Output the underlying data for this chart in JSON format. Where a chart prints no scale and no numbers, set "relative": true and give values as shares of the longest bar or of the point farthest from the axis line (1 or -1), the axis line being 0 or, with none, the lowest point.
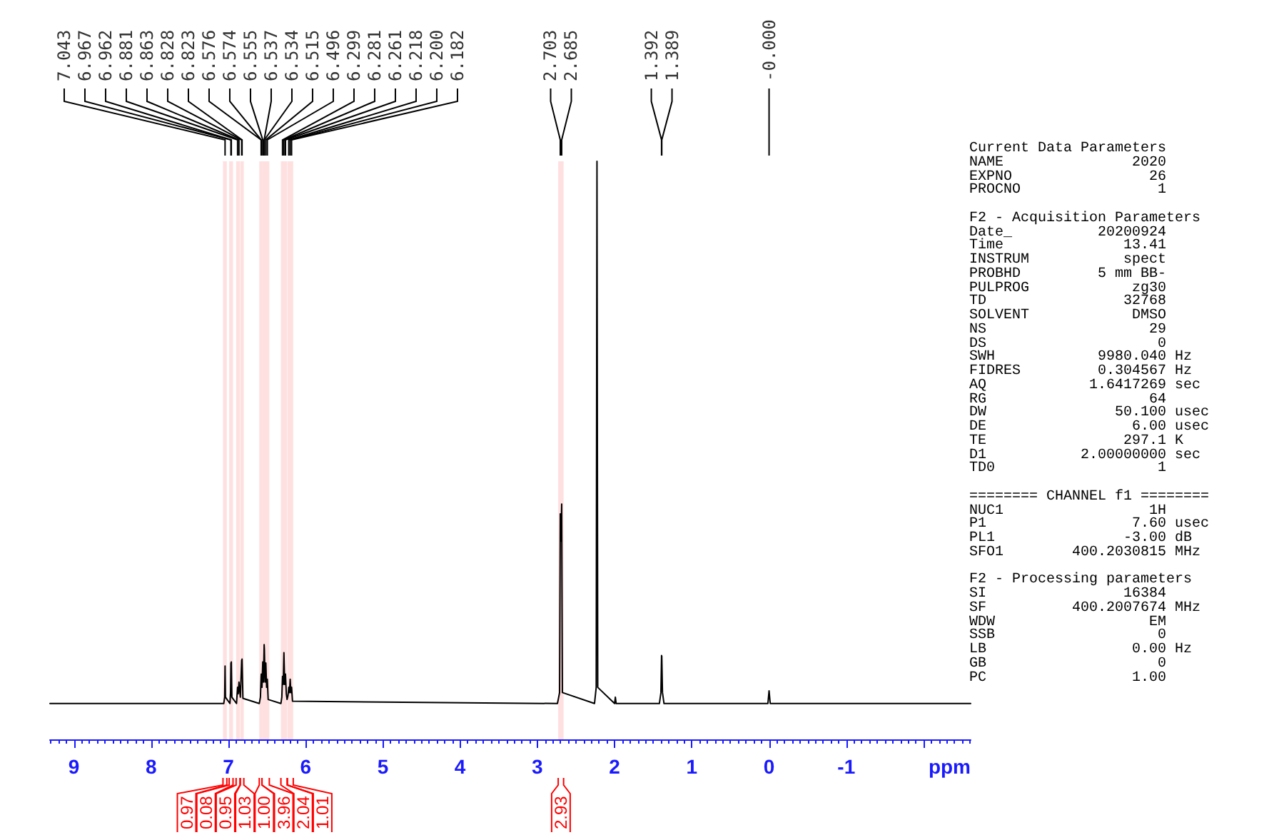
{
  "chart_data": {
    "type": "line",
    "relative": true,
    "xlabel": "ppm",
    "xlim": [
      9.31,
      -2.61
    ],
    "xticks": [
      9,
      8,
      7,
      6,
      5,
      4,
      3,
      2,
      1,
      0,
      -1,
      {
        "value": -2,
        "label": null
      }
    ],
    "color": "#000000",
    "marker": "none",
    "x": [
      9.31,
      7.06,
      7.048,
      7.043,
      7.038,
      6.98,
      6.972,
      6.967,
      6.964,
      6.962,
      6.955,
      6.895,
      6.881,
      6.872,
      6.863,
      6.845,
      6.828,
      6.825,
      6.823,
      6.812,
      6.6,
      6.585,
      6.576,
      6.574,
      6.565,
      6.555,
      6.546,
      6.537,
      6.534,
      6.525,
      6.515,
      6.505,
      6.496,
      6.485,
      6.32,
      6.308,
      6.299,
      6.29,
      6.281,
      6.271,
      6.261,
      6.25,
      6.24,
      6.228,
      6.218,
      6.209,
      6.2,
      6.191,
      6.182,
      6.17,
      2.74,
      2.712,
      2.703,
      2.694,
      2.685,
      2.676,
      2.26,
      2.238,
      2.228,
      2.218,
      2.0,
      1.99,
      1.98,
      1.42,
      1.4,
      1.392,
      1.39,
      1.389,
      1.38,
      1.36,
      0.015,
      0.0,
      -0.015,
      -2.61
    ],
    "values": [
      0.062,
      0.062,
      0.073,
      0.127,
      0.073,
      0.062,
      0.081,
      0.132,
      0.118,
      0.134,
      0.073,
      0.062,
      0.09,
      0.079,
      0.099,
      0.073,
      0.137,
      0.127,
      0.139,
      0.071,
      0.062,
      0.073,
      0.109,
      0.113,
      0.09,
      0.134,
      0.099,
      0.164,
      0.156,
      0.099,
      0.132,
      0.09,
      0.104,
      0.069,
      0.062,
      0.073,
      0.109,
      0.095,
      0.15,
      0.095,
      0.113,
      0.079,
      0.069,
      0.076,
      0.09,
      0.081,
      0.104,
      0.081,
      0.09,
      0.066,
      0.062,
      0.081,
      0.39,
      0.343,
      0.407,
      0.081,
      0.062,
      0.09,
      1,
      0.09,
      0.062,
      0.073,
      0.062,
      0.062,
      0.081,
      0.145,
      0.137,
      0.144,
      0.081,
      0.062,
      0.062,
      0.084,
      0.062,
      0.062
    ],
    "bands": [
      {
        "axis": "x",
        "from": 7.07,
        "to": 7.02,
        "label": "0.97",
        "color": "#ff0000"
      },
      {
        "axis": "x",
        "from": 6.99,
        "to": 6.94,
        "label": "0.08",
        "color": "#ff0000"
      },
      {
        "axis": "x",
        "from": 6.9,
        "to": 6.85,
        "label": "0.95",
        "color": "#ff0000"
      },
      {
        "axis": "x",
        "from": 6.845,
        "to": 6.8,
        "label": "1.03",
        "color": "#ff0000"
      },
      {
        "axis": "x",
        "from": 6.6,
        "to": 6.565,
        "label": "1.00",
        "color": "#ff0000"
      },
      {
        "axis": "x",
        "from": 6.565,
        "to": 6.47,
        "label": "3.96",
        "color": "#ff0000"
      },
      {
        "axis": "x",
        "from": 6.32,
        "to": 6.24,
        "label": "2.04",
        "color": "#ff0000"
      },
      {
        "axis": "x",
        "from": 6.235,
        "to": 6.16,
        "label": "1.01",
        "color": "#ff0000"
      },
      {
        "axis": "x",
        "from": 2.73,
        "to": 2.66,
        "label": "2.93",
        "color": "#ff0000"
      }
    ],
    "annotations": [
      {
        "text": "7.043",
        "x": 7.043
      },
      {
        "text": "6.967",
        "x": 6.967
      },
      {
        "text": "6.962",
        "x": 6.962
      },
      {
        "text": "6.881",
        "x": 6.881
      },
      {
        "text": "6.863",
        "x": 6.863
      },
      {
        "text": "6.828",
        "x": 6.828
      },
      {
        "text": "6.823",
        "x": 6.823
      },
      {
        "text": "6.576",
        "x": 6.576
      },
      {
        "text": "6.574",
        "x": 6.574
      },
      {
        "text": "6.555",
        "x": 6.555
      },
      {
        "text": "6.537",
        "x": 6.537
      },
      {
        "text": "6.534",
        "x": 6.534
      },
      {
        "text": "6.515",
        "x": 6.515
      },
      {
        "text": "6.496",
        "x": 6.496
      },
      {
        "text": "6.299",
        "x": 6.299
      },
      {
        "text": "6.281",
        "x": 6.281
      },
      {
        "text": "6.261",
        "x": 6.261
      },
      {
        "text": "6.218",
        "x": 6.218
      },
      {
        "text": "6.200",
        "x": 6.2
      },
      {
        "text": "6.182",
        "x": 6.182
      },
      {
        "text": "2.703",
        "x": 2.703
      },
      {
        "text": "2.685",
        "x": 2.685
      },
      {
        "text": "1.392",
        "x": 1.392
      },
      {
        "text": "1.389",
        "x": 1.389
      },
      {
        "text": "-0.000",
        "x": 0
      },
      "Current Data Parameters\nNAME               2020\nEXPNO                26\nPROCNO                1",
      "F2 - Acquisition Parameters\nDate_          20200924\nTime              13.41\nINSTRUM           spect\nPROBHD         5 mm BB-\nPULPROG            zg30\nTD                32768\nSOLVENT            DMSO\nNS                   29\nDS                    0\nSWH            9980.040 Hz\nFIDRES         0.304567 Hz\nAQ            1.6417269 sec\nRG                   64\nDW               50.100 usec\nDE                 6.00 usec\nTE                297.1 K\nD1           2.00000000 sec\nTD0                   1",
      "======== CHANNEL f1 ========\nNUC1                 1H\nP1                 7.60 usec\nPL1               -3.00 dB\nSFO1        400.2030815 MHz",
      "F2 - Processing parameters\nSI                16384\nSF          400.2007674 MHz\nWDW                  EM\nSSB                   0\nLB                 0.00 Hz\nGB                    0\nPC                 1.00"
    ]
  }
}
